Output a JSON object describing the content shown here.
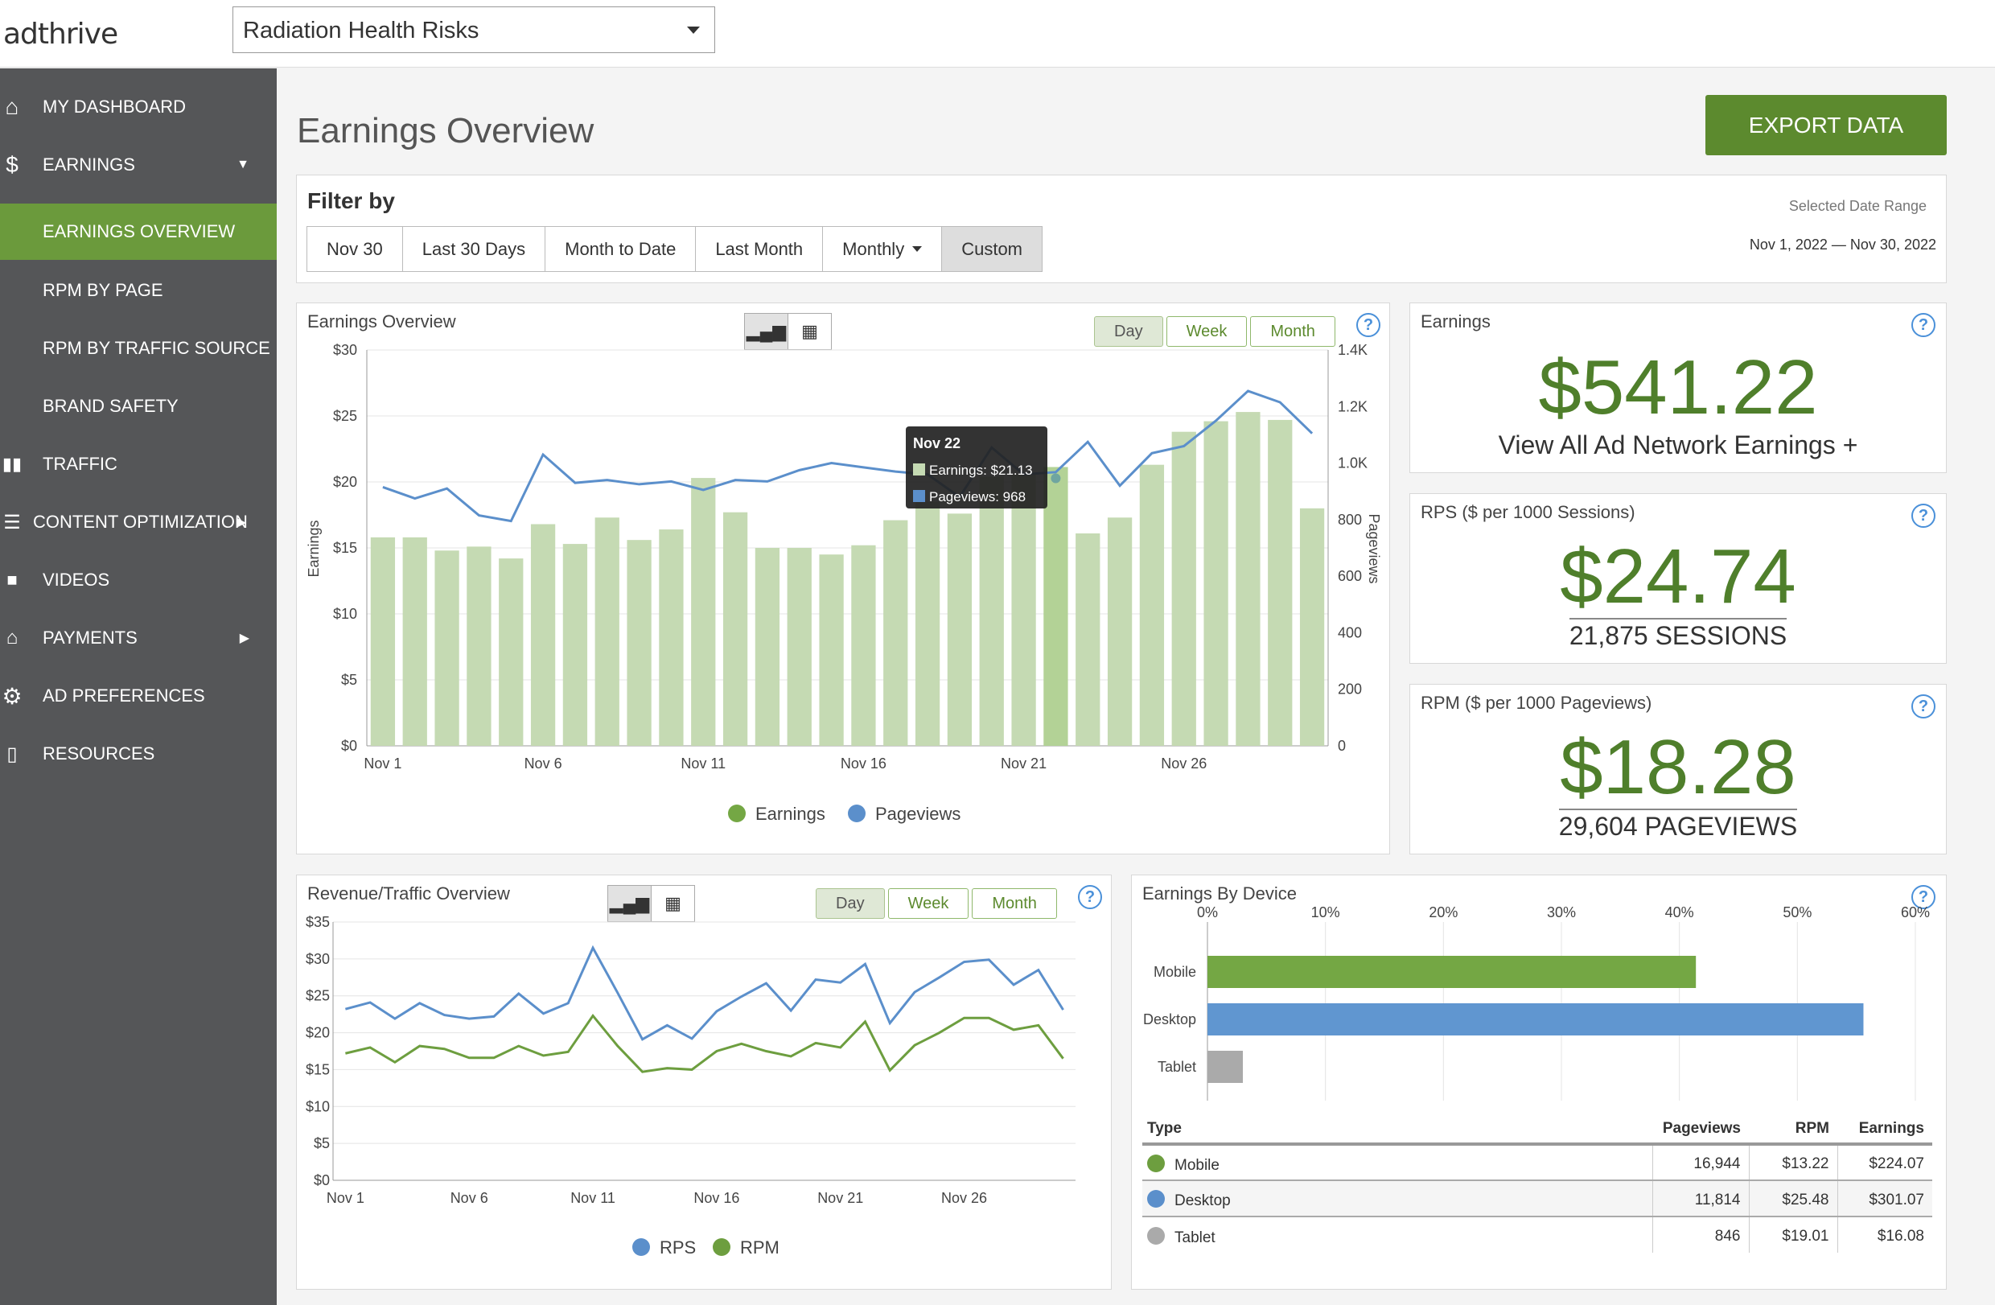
{
  "header": {
    "logo_text": "adthrive",
    "site_select_value": "Radiation Health Risks"
  },
  "sidebar": {
    "items": [
      {
        "label": "MY DASHBOARD",
        "icon": "home-icon"
      },
      {
        "label": "EARNINGS",
        "icon": "dollar-icon"
      },
      {
        "label": "EARNINGS OVERVIEW"
      },
      {
        "label": "RPM BY PAGE"
      },
      {
        "label": "RPM BY TRAFFIC SOURCE"
      },
      {
        "label": "BRAND SAFETY"
      },
      {
        "label": "TRAFFIC",
        "icon": "bar-chart-icon"
      },
      {
        "label": "CONTENT OPTIMIZATION",
        "icon": "edit-list-icon"
      },
      {
        "label": "VIDEOS",
        "icon": "video-camera-icon"
      },
      {
        "label": "PAYMENTS",
        "icon": "bank-icon"
      },
      {
        "label": "AD PREFERENCES",
        "icon": "gear-icon"
      },
      {
        "label": "RESOURCES",
        "icon": "book-icon"
      }
    ],
    "active_color": "#6b9a3c",
    "bg_color": "#555658"
  },
  "main": {
    "title": "Earnings Overview",
    "export_label": "EXPORT DATA"
  },
  "filter": {
    "title": "Filter by",
    "buttons": [
      "Nov 30",
      "Last 30 Days",
      "Month to Date",
      "Last Month",
      "Monthly",
      "Custom"
    ],
    "selected": "Custom",
    "range_label": "Selected Date Range",
    "range_value": "Nov 1, 2022 — Nov 30, 2022"
  },
  "period_buttons": [
    "Day",
    "Week",
    "Month"
  ],
  "help_glyph": "?",
  "earnings_chart": {
    "title": "Earnings Overview",
    "tooltip": {
      "date": "Nov 22",
      "earnings": "Earnings: $21.13",
      "pageviews": "Pageviews: 968"
    }
  },
  "revenue_chart": {
    "title": "Revenue/Traffic Overview"
  },
  "stats": {
    "earnings": {
      "title": "Earnings",
      "value": "$541.22",
      "link": "View All Ad Network Earnings +"
    },
    "rps": {
      "title": "RPS ($ per 1000 Sessions)",
      "value": "$24.74",
      "sub": "21,875 SESSIONS"
    },
    "rpm": {
      "title": "RPM ($ per 1000 Pageviews)",
      "value": "$18.28",
      "sub": "29,604 PAGEVIEWS"
    }
  },
  "device": {
    "title": "Earnings By Device",
    "table": {
      "headers": [
        "Type",
        "Pageviews",
        "RPM",
        "Earnings"
      ],
      "rows": [
        {
          "type": "Mobile",
          "pageviews": "16,944",
          "rpm": "$13.22",
          "earnings": "$224.07",
          "color": "#6d9e3f"
        },
        {
          "type": "Desktop",
          "pageviews": "11,814",
          "rpm": "$25.48",
          "earnings": "$301.07",
          "color": "#5b8fcb"
        },
        {
          "type": "Tablet",
          "pageviews": "846",
          "rpm": "$19.01",
          "earnings": "$16.08",
          "color": "#aaaaaa"
        }
      ]
    }
  },
  "chart_data": [
    {
      "type": "bar",
      "title": "Earnings Overview",
      "xlabel": "",
      "ylabel": "Earnings",
      "y2label": "Pageviews",
      "x": [
        "Nov 1",
        "Nov 2",
        "Nov 3",
        "Nov 4",
        "Nov 5",
        "Nov 6",
        "Nov 7",
        "Nov 8",
        "Nov 9",
        "Nov 10",
        "Nov 11",
        "Nov 12",
        "Nov 13",
        "Nov 14",
        "Nov 15",
        "Nov 16",
        "Nov 17",
        "Nov 18",
        "Nov 19",
        "Nov 20",
        "Nov 21",
        "Nov 22",
        "Nov 23",
        "Nov 24",
        "Nov 25",
        "Nov 26",
        "Nov 27",
        "Nov 28",
        "Nov 29",
        "Nov 30"
      ],
      "xticks": [
        "Nov 1",
        "Nov 6",
        "Nov 11",
        "Nov 16",
        "Nov 21",
        "Nov 26"
      ],
      "ylim": [
        0,
        30
      ],
      "yticks": [
        "$0",
        "$5",
        "$10",
        "$15",
        "$20",
        "$25",
        "$30"
      ],
      "y2lim": [
        0,
        1400
      ],
      "y2ticks": [
        "0",
        "200",
        "400",
        "600",
        "800",
        "1.0K",
        "1.2K",
        "1.4K"
      ],
      "series": [
        {
          "name": "Earnings",
          "axis": "left",
          "kind": "bar",
          "color": "#c5dab3",
          "values": [
            15.8,
            15.8,
            14.8,
            15.1,
            14.2,
            16.8,
            15.3,
            17.3,
            15.6,
            16.4,
            20.3,
            17.7,
            15.0,
            15.0,
            14.5,
            15.2,
            17.1,
            18.5,
            17.6,
            20.4,
            20.6,
            21.13,
            16.1,
            17.3,
            21.3,
            23.8,
            24.6,
            25.3,
            24.7,
            18.0
          ]
        },
        {
          "name": "Pageviews",
          "axis": "right",
          "kind": "line",
          "color": "#5b8fcb",
          "values": [
            915,
            875,
            910,
            815,
            795,
            1030,
            930,
            940,
            925,
            935,
            905,
            940,
            935,
            975,
            1000,
            985,
            970,
            960,
            880,
            1055,
            960,
            968,
            1075,
            920,
            1035,
            1060,
            1150,
            1255,
            1215,
            1105
          ]
        }
      ],
      "legend": [
        "Earnings",
        "Pageviews"
      ]
    },
    {
      "type": "line",
      "title": "Revenue/Traffic Overview",
      "xlabel": "",
      "ylabel": "",
      "x": [
        "Nov 1",
        "Nov 2",
        "Nov 3",
        "Nov 4",
        "Nov 5",
        "Nov 6",
        "Nov 7",
        "Nov 8",
        "Nov 9",
        "Nov 10",
        "Nov 11",
        "Nov 12",
        "Nov 13",
        "Nov 14",
        "Nov 15",
        "Nov 16",
        "Nov 17",
        "Nov 18",
        "Nov 19",
        "Nov 20",
        "Nov 21",
        "Nov 22",
        "Nov 23",
        "Nov 24",
        "Nov 25",
        "Nov 26",
        "Nov 27",
        "Nov 28",
        "Nov 29",
        "Nov 30"
      ],
      "xticks": [
        "Nov 1",
        "Nov 6",
        "Nov 11",
        "Nov 16",
        "Nov 21",
        "Nov 26"
      ],
      "ylim": [
        0,
        35
      ],
      "yticks": [
        "$0",
        "$5",
        "$10",
        "$15",
        "$20",
        "$25",
        "$30",
        "$35"
      ],
      "series": [
        {
          "name": "RPS",
          "color": "#5b8fcb",
          "values": [
            23.2,
            24.1,
            21.9,
            24.0,
            22.4,
            21.9,
            22.2,
            25.3,
            22.6,
            24.0,
            31.5,
            25.4,
            19.1,
            21.0,
            19.2,
            22.9,
            24.9,
            26.7,
            23.0,
            27.2,
            26.8,
            29.3,
            21.3,
            25.5,
            27.5,
            29.6,
            29.9,
            26.5,
            28.5,
            23.1
          ]
        },
        {
          "name": "RPM",
          "color": "#6d9e3f",
          "values": [
            17.2,
            18.0,
            16.0,
            18.2,
            17.8,
            16.6,
            16.6,
            18.2,
            16.9,
            17.4,
            22.3,
            18.2,
            14.7,
            15.2,
            15.0,
            17.5,
            18.5,
            17.5,
            16.8,
            18.6,
            18.0,
            21.5,
            14.9,
            18.3,
            20.0,
            22.0,
            22.0,
            20.4,
            21.0,
            16.5
          ]
        }
      ],
      "legend": [
        "RPS",
        "RPM"
      ]
    },
    {
      "type": "bar",
      "orientation": "horizontal",
      "title": "Earnings By Device",
      "categories": [
        "Mobile",
        "Desktop",
        "Tablet"
      ],
      "values": [
        41.4,
        55.6,
        3.0
      ],
      "colors": [
        "#74a744",
        "#6096d0",
        "#aaaaaa"
      ],
      "xlim": [
        0,
        60
      ],
      "xticks": [
        "0%",
        "10%",
        "20%",
        "30%",
        "40%",
        "50%",
        "60%"
      ]
    }
  ]
}
